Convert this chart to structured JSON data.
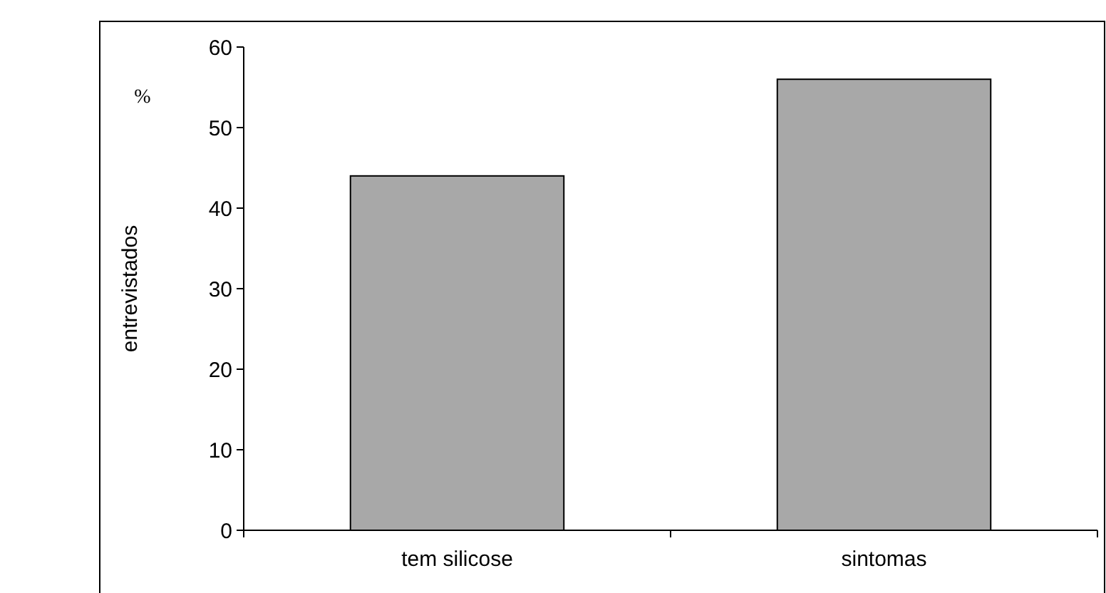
{
  "chart_data": {
    "type": "bar",
    "ylabel": "entrevistados",
    "annotations": [
      "%"
    ],
    "categories": [
      "tem silicose",
      "sintomas"
    ],
    "values": [
      44,
      56
    ],
    "color": "#a8a8a8",
    "ylim": [
      0,
      60
    ],
    "yticks": [
      0,
      10,
      20,
      30,
      40,
      50,
      60
    ],
    "grid": false
  }
}
